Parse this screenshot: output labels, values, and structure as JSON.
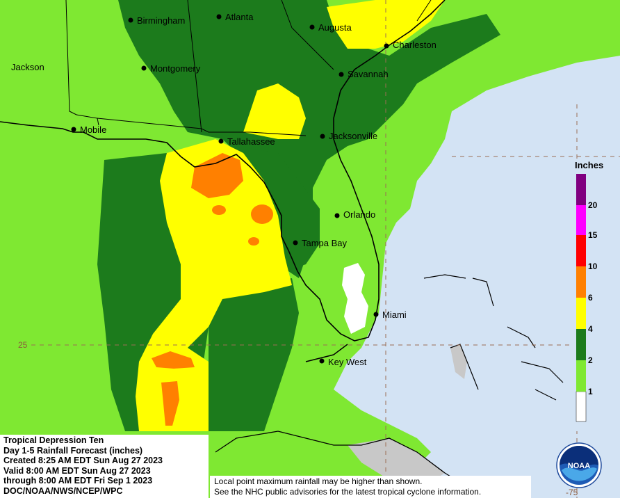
{
  "cities": {
    "birmingham": "Birmingham",
    "atlanta": "Atlanta",
    "augusta": "Augusta",
    "charleston": "Charleston",
    "jackson": "Jackson",
    "montgomery": "Montgomery",
    "savannah": "Savannah",
    "mobile": "Mobile",
    "tallahassee": "Tallahassee",
    "jacksonville": "Jacksonville",
    "orlando": "Orlando",
    "tampa_bay": "Tampa Bay",
    "miami": "Miami",
    "key_west": "Key West"
  },
  "grid_labels": {
    "lat_25": "25",
    "lon_75": "-75"
  },
  "legend": {
    "title": "Inches",
    "ticks": [
      "1",
      "2",
      "4",
      "6",
      "10",
      "15",
      "20"
    ],
    "colors": [
      "#ffffff",
      "#7fe832",
      "#1c7b1c",
      "#ffff00",
      "#ff8000",
      "#ff0000",
      "#ff00ff",
      "#800080"
    ]
  },
  "info": {
    "line1": "Tropical Depression Ten",
    "line2": "Day 1-5 Rainfall Forecast (inches)",
    "line3": "Created 8:25 AM EDT Sun Aug 27 2023",
    "line4": "Valid 8:00 AM EDT Sun Aug 27 2023",
    "line5": "through 8:00 AM EDT Fri Sep 1 2023",
    "line6": "DOC/NOAA/NWS/NCEP/WPC"
  },
  "disclaimer": {
    "line1": "Local point maximum rainfall may be higher than shown.",
    "line2": "See the NHC public advisories for the latest tropical cyclone information."
  },
  "logo_text": "NOAA"
}
